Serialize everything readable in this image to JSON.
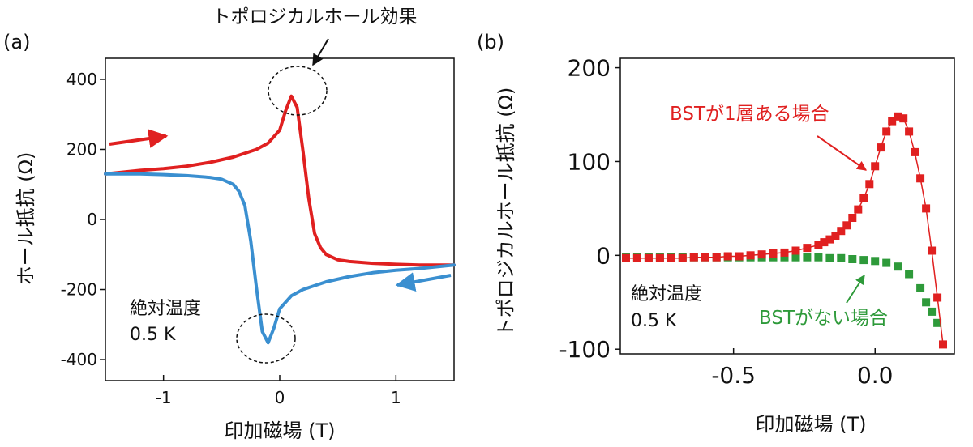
{
  "panels": [
    {
      "panel_label": "(a)",
      "annotation_title": "トポロジカルホール効果",
      "temperature_label": "絶対温度",
      "temperature_value": "0.5 K",
      "colors": {
        "sweep_up": "#e02020",
        "sweep_down": "#3a8fd0",
        "axis": "#111111"
      }
    },
    {
      "panel_label": "(b)",
      "temperature_label": "絶対温度",
      "temperature_value": "0.5 K",
      "colors": {
        "with_bst": "#e02020",
        "without_bst": "#2e9a3a",
        "axis": "#111111"
      }
    }
  ],
  "chart_data": [
    {
      "type": "line",
      "xlabel": "印加磁場 (T)",
      "ylabel": "ホール抵抗 (Ω)",
      "xlim": [
        -1.5,
        1.5
      ],
      "ylim": [
        -460,
        460
      ],
      "xticks": [
        -1,
        0,
        1
      ],
      "yticks": [
        -400,
        -200,
        0,
        200,
        400
      ],
      "grid": false,
      "series": [
        {
          "x": [
            -1.5,
            -1.2,
            -1.0,
            -0.8,
            -0.6,
            -0.4,
            -0.2,
            -0.1,
            0.0,
            0.05,
            0.1,
            0.15,
            0.2,
            0.25,
            0.3,
            0.35,
            0.4,
            0.5,
            0.6,
            0.8,
            1.0,
            1.2,
            1.5
          ],
          "y": [
            130,
            140,
            145,
            152,
            163,
            178,
            200,
            218,
            255,
            310,
            352,
            320,
            195,
            60,
            -40,
            -80,
            -100,
            -115,
            -120,
            -125,
            -128,
            -130,
            -130
          ]
        },
        {
          "x": [
            1.5,
            1.2,
            1.0,
            0.8,
            0.6,
            0.4,
            0.2,
            0.1,
            0.0,
            -0.05,
            -0.1,
            -0.15,
            -0.2,
            -0.25,
            -0.3,
            -0.35,
            -0.4,
            -0.5,
            -0.6,
            -0.8,
            -1.0,
            -1.2,
            -1.5
          ],
          "y": [
            -130,
            -140,
            -145,
            -152,
            -163,
            -178,
            -200,
            -218,
            -255,
            -310,
            -352,
            -320,
            -195,
            -60,
            40,
            80,
            100,
            115,
            120,
            125,
            128,
            130,
            130
          ]
        }
      ],
      "annotations": [
        "トポロジカルホール効果",
        "絶対温度",
        "0.5 K"
      ]
    },
    {
      "type": "scatter",
      "xlabel": "印加磁場 (T)",
      "ylabel": "トポロジカルホール抵抗 (Ω)",
      "xlim": [
        -0.9,
        0.28
      ],
      "ylim": [
        -105,
        210
      ],
      "xticks": [
        -0.5,
        0.0
      ],
      "xtick_labels": [
        "-0.5",
        "0.0"
      ],
      "yticks": [
        -100,
        0,
        100,
        200
      ],
      "grid": false,
      "series": [
        {
          "name": "BSTが1層ある場合",
          "x": [
            -0.88,
            -0.84,
            -0.8,
            -0.76,
            -0.72,
            -0.68,
            -0.64,
            -0.6,
            -0.56,
            -0.52,
            -0.48,
            -0.44,
            -0.4,
            -0.36,
            -0.32,
            -0.28,
            -0.24,
            -0.2,
            -0.18,
            -0.16,
            -0.14,
            -0.12,
            -0.1,
            -0.08,
            -0.06,
            -0.04,
            -0.02,
            0.0,
            0.02,
            0.04,
            0.06,
            0.08,
            0.1,
            0.12,
            0.14,
            0.16,
            0.18,
            0.2,
            0.22,
            0.24
          ],
          "y": [
            -3,
            -3,
            -3,
            -3,
            -3,
            -3,
            -2,
            -2,
            -2,
            -1,
            -1,
            0,
            1,
            2,
            3,
            5,
            8,
            11,
            14,
            17,
            21,
            26,
            32,
            40,
            49,
            61,
            76,
            95,
            115,
            132,
            143,
            148,
            146,
            132,
            110,
            82,
            50,
            5,
            -45,
            -95
          ]
        },
        {
          "name": "BSTがない場合",
          "x": [
            -0.88,
            -0.84,
            -0.8,
            -0.76,
            -0.72,
            -0.68,
            -0.64,
            -0.6,
            -0.56,
            -0.52,
            -0.48,
            -0.44,
            -0.4,
            -0.36,
            -0.32,
            -0.28,
            -0.24,
            -0.2,
            -0.16,
            -0.12,
            -0.08,
            -0.04,
            0.0,
            0.04,
            0.08,
            0.12,
            0.16,
            0.18,
            0.2,
            0.22
          ],
          "y": [
            -2,
            -2,
            -2,
            -2,
            -2,
            -2,
            -2,
            -2,
            -2,
            -2,
            -2,
            -2,
            -2,
            -2,
            -2,
            -2,
            -2,
            -2,
            -3,
            -3,
            -4,
            -5,
            -6,
            -8,
            -12,
            -20,
            -35,
            -50,
            -60,
            -72
          ]
        }
      ],
      "annotations": [
        "絶対温度",
        "0.5 K"
      ]
    }
  ]
}
